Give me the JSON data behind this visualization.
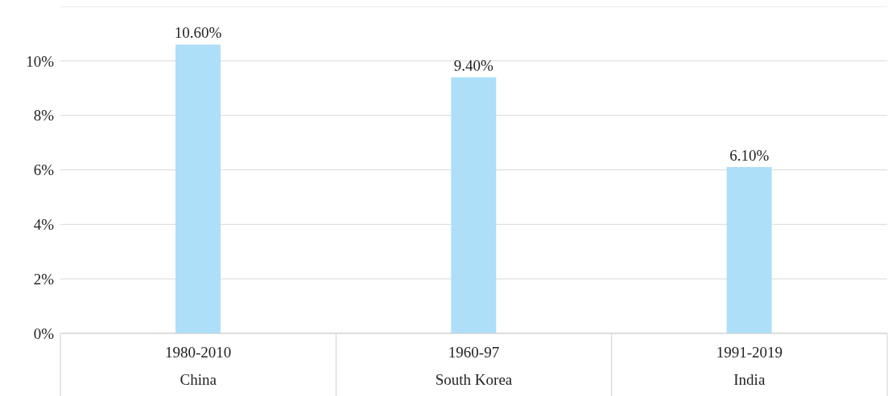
{
  "chart_data": {
    "type": "bar",
    "categories": [
      "1980-2010\nChina",
      "1960-97\nSouth Korea",
      "1991-2019\nIndia"
    ],
    "values": [
      10.6,
      9.4,
      6.1
    ],
    "value_labels": [
      "10.60%",
      "9.40%",
      "6.10%"
    ],
    "color": "#addff9",
    "ylim": [
      0,
      12
    ],
    "yticks": [
      {
        "value": 0,
        "label": "0%"
      },
      {
        "value": 2,
        "label": "2%"
      },
      {
        "value": 4,
        "label": "4%"
      },
      {
        "value": 6,
        "label": "6%"
      },
      {
        "value": 8,
        "label": "8%"
      },
      {
        "value": 10,
        "label": "10%"
      }
    ],
    "grid": "y"
  }
}
